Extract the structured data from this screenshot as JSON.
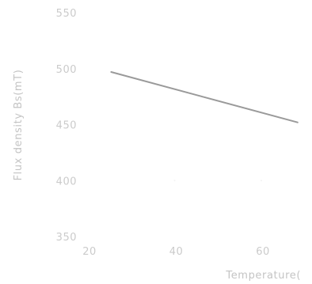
{
  "chart_data": {
    "type": "line",
    "title": "",
    "xlabel": "Temperature(",
    "ylabel": "Flux density Bs(mT)",
    "xlim": [
      20,
      70
    ],
    "ylim": [
      350,
      550
    ],
    "x_ticks": [
      20,
      40,
      60
    ],
    "y_ticks": [
      350,
      400,
      450,
      500,
      550
    ],
    "x_tick_labels": [
      "20",
      "40",
      "60"
    ],
    "y_tick_labels": [
      "350",
      "400",
      "450",
      "500",
      "550"
    ],
    "grid": false,
    "legend": "none",
    "series": [
      {
        "x": [
          25,
          68
        ],
        "y": [
          497,
          452
        ],
        "color": "#9a9a9a"
      }
    ],
    "colors": {
      "tick_text": "#cbcbcb",
      "axis_label": "#c4c4c4",
      "line": "#9a9a9a"
    }
  }
}
